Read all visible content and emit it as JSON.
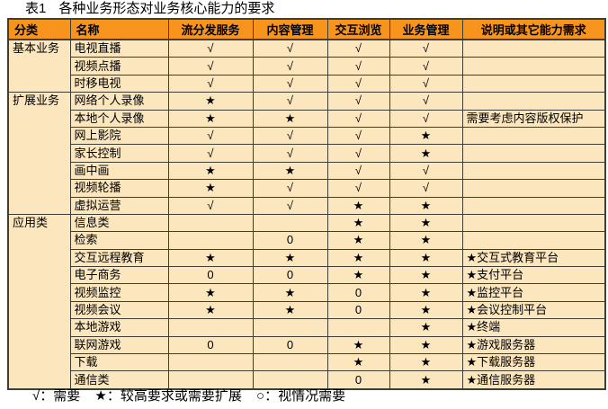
{
  "title": {
    "prefix": "表1",
    "text": "各种业务形态对业务核心能力的要求"
  },
  "table": {
    "headers": [
      "分类",
      "名称",
      "流分发服务",
      "内容管理",
      "交互浏览",
      "业务管理",
      "说明或其它能力需求"
    ],
    "sections": [
      {
        "category": "基本业务",
        "rows": [
          {
            "name": "电视直播",
            "cells": [
              "√",
              "√",
              "√",
              "√"
            ],
            "note": ""
          },
          {
            "name": "视频点播",
            "cells": [
              "√",
              "√",
              "√",
              "√"
            ],
            "note": ""
          },
          {
            "name": "时移电视",
            "cells": [
              "√",
              "√",
              "√",
              "√"
            ],
            "note": ""
          }
        ]
      },
      {
        "category": "扩展业务",
        "rows": [
          {
            "name": "网络个人录像",
            "cells": [
              "★",
              "√",
              "√",
              "√"
            ],
            "note": ""
          },
          {
            "name": "本地个人录像",
            "cells": [
              "★",
              "★",
              "√",
              "√"
            ],
            "note": "需要考虑内容版权保护"
          },
          {
            "name": "网上影院",
            "cells": [
              "√",
              "√",
              "√",
              "★"
            ],
            "note": ""
          },
          {
            "name": "家长控制",
            "cells": [
              "√",
              "√",
              "√",
              "★"
            ],
            "note": ""
          },
          {
            "name": "画中画",
            "cells": [
              "★",
              "★",
              "√",
              "√"
            ],
            "note": ""
          },
          {
            "name": "视频轮播",
            "cells": [
              "★",
              "√",
              "√",
              "√"
            ],
            "note": ""
          },
          {
            "name": "虚拟运营",
            "cells": [
              "√",
              "√",
              "★",
              "★"
            ],
            "note": ""
          }
        ]
      },
      {
        "category": "应用类",
        "rows": [
          {
            "name": "信息类",
            "cells": [
              "",
              "",
              "★",
              "★"
            ],
            "note": ""
          },
          {
            "name": "检索",
            "cells": [
              "",
              "0",
              "★",
              "★"
            ],
            "note": ""
          },
          {
            "name": "交互远程教育",
            "cells": [
              "★",
              "★",
              "★",
              "★"
            ],
            "note": "★交互式教育平台"
          },
          {
            "name": "电子商务",
            "cells": [
              "0",
              "0",
              "★",
              "★"
            ],
            "note": "★支付平台"
          },
          {
            "name": "视频监控",
            "cells": [
              "★",
              "★",
              "0",
              "★"
            ],
            "note": "★监控平台"
          },
          {
            "name": "视频会议",
            "cells": [
              "★",
              "★",
              "0",
              "★"
            ],
            "note": "★会议控制平台"
          },
          {
            "name": "本地游戏",
            "cells": [
              "",
              "",
              "",
              "★"
            ],
            "note": "★终端"
          },
          {
            "name": "联网游戏",
            "cells": [
              "0",
              "0",
              "★",
              "★"
            ],
            "note": "★游戏服务器"
          },
          {
            "name": "下载",
            "cells": [
              "",
              "",
              "★",
              "★"
            ],
            "note": "★下载服务器"
          },
          {
            "name": "通信类",
            "cells": [
              "",
              "",
              "0",
              "★"
            ],
            "note": "★通信服务器"
          }
        ]
      }
    ]
  },
  "legend": {
    "items": [
      "√：需要",
      "★：较高要求或需要扩展",
      "○：视情况需要"
    ]
  },
  "colors": {
    "header_bg": "#F7941E",
    "row_bg": "#FBE6BE",
    "border": "#3E3E35",
    "text": "#000000",
    "page_bg": "#FFFFFF"
  }
}
